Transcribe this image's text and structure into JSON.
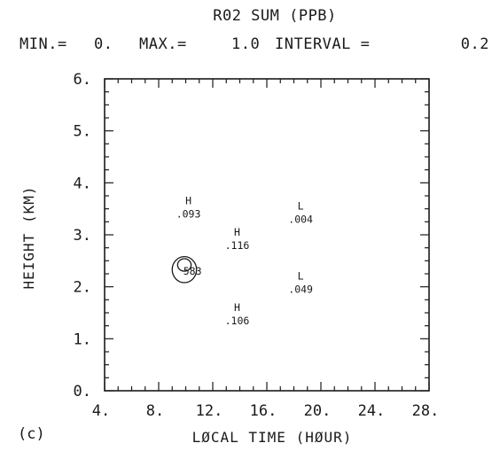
{
  "chart_data": {
    "type": "contour",
    "title": "R02 SUM    (PPB)",
    "subtitle": {
      "min_label": "MIN.=",
      "min_value": "0.",
      "max_label": "MAX.=",
      "max_value": "1.0",
      "interval_label": "INTERVAL =",
      "interval_value": "0.2"
    },
    "xlabel": "LØCAL TIME (HØUR)",
    "ylabel": "HEIGHT (KM)",
    "panel_label": "(c)",
    "xlim": [
      4,
      28
    ],
    "ylim": [
      0,
      6
    ],
    "xticks": [
      "4.",
      "8.",
      "12.",
      "16.",
      "20.",
      "24.",
      "28."
    ],
    "yticks": [
      "0.",
      "1.",
      "2.",
      "3.",
      "4.",
      "5.",
      "6."
    ],
    "grid": false,
    "extrema": [
      {
        "kind": "H",
        "value": ".093",
        "x": 10.2,
        "y": 3.45
      },
      {
        "kind": "H",
        "value": ".116",
        "x": 13.8,
        "y": 2.85
      },
      {
        "kind": "L",
        "value": ".004",
        "x": 18.5,
        "y": 3.35
      },
      {
        "kind": "L",
        "value": ".049",
        "x": 18.5,
        "y": 2.0
      },
      {
        "kind": "H",
        "value": ".106",
        "x": 13.8,
        "y": 1.4
      },
      {
        "kind": "",
        "value": "583",
        "x": 10.5,
        "y": 2.3
      }
    ],
    "contours": [
      {
        "level": 0.2,
        "center": [
          9.9,
          2.33
        ],
        "rx": 0.9,
        "ry": 0.25
      },
      {
        "level": 0.4,
        "center": [
          9.9,
          2.42
        ],
        "rx": 0.5,
        "ry": 0.12
      }
    ]
  }
}
